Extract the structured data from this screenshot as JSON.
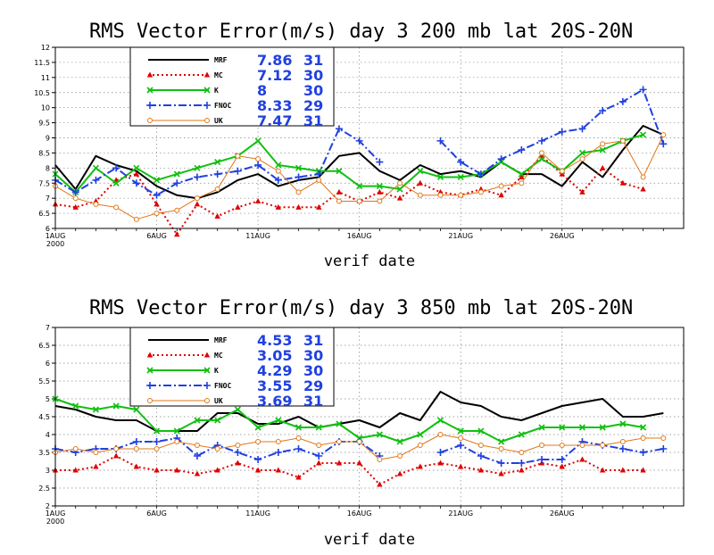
{
  "chart_data": [
    {
      "type": "line",
      "title": "RMS Vector Error(m/s) day 3  200 mb   lat 20S-20N",
      "xlabel": "verif date",
      "ylabel": "",
      "ylim": [
        6,
        12
      ],
      "yticks": [
        "6",
        "6.5",
        "7",
        "7.5",
        "8",
        "8.5",
        "9",
        "9.5",
        "10",
        "10.5",
        "11",
        "11.5",
        "12"
      ],
      "xticks": [
        {
          "label": "1AUG",
          "sublabel": "2000",
          "day": 1
        },
        {
          "label": "6AUG",
          "day": 6
        },
        {
          "label": "11AUG",
          "day": 11
        },
        {
          "label": "16AUG",
          "day": 16
        },
        {
          "label": "21AUG",
          "day": 21
        },
        {
          "label": "26AUG",
          "day": 26
        }
      ],
      "grid": true,
      "legend_position": "top-left",
      "series": [
        {
          "name": "MRF",
          "mean": "7.86",
          "count": "31",
          "color": "#000000",
          "dash": "",
          "marker": "none",
          "width": 2,
          "x": [
            1,
            2,
            3,
            4,
            5,
            6,
            7,
            8,
            9,
            10,
            11,
            12,
            13,
            14,
            15,
            16,
            17,
            18,
            19,
            20,
            21,
            22,
            23,
            24,
            25,
            26,
            27,
            28,
            29,
            30,
            31
          ],
          "values": [
            8.1,
            7.3,
            8.4,
            8.1,
            7.9,
            7.4,
            7.1,
            7.0,
            7.2,
            7.6,
            7.8,
            7.4,
            7.6,
            7.7,
            8.4,
            8.5,
            7.9,
            7.6,
            8.1,
            7.8,
            7.9,
            7.7,
            8.2,
            7.8,
            7.8,
            7.4,
            8.2,
            7.7,
            8.6,
            9.4,
            9.1
          ]
        },
        {
          "name": "MC",
          "mean": "7.12",
          "count": "30",
          "color": "#e00000",
          "dash": "2 3",
          "marker": "tri",
          "width": 2,
          "x": [
            1,
            2,
            3,
            4,
            5,
            6,
            7,
            8,
            9,
            10,
            11,
            12,
            13,
            14,
            15,
            16,
            17,
            18,
            19,
            20,
            21,
            22,
            23,
            24,
            25,
            26,
            27,
            28,
            29,
            30
          ],
          "values": [
            6.8,
            6.7,
            6.9,
            7.6,
            7.8,
            6.8,
            5.8,
            6.8,
            6.4,
            6.7,
            6.9,
            6.7,
            6.7,
            6.7,
            7.2,
            6.9,
            7.2,
            7.0,
            7.5,
            7.2,
            7.1,
            7.3,
            7.1,
            7.7,
            8.4,
            7.8,
            7.2,
            8.0,
            7.5,
            7.3
          ]
        },
        {
          "name": "K",
          "mean": "8",
          "count": "30",
          "color": "#10c010",
          "dash": "",
          "marker": "x",
          "width": 2,
          "x": [
            1,
            2,
            3,
            4,
            5,
            6,
            7,
            8,
            9,
            10,
            11,
            12,
            13,
            14,
            15,
            16,
            17,
            18,
            19,
            20,
            21,
            22,
            23,
            24,
            25,
            26,
            27,
            28,
            29,
            30
          ],
          "values": [
            7.8,
            7.2,
            8.0,
            7.5,
            8.0,
            7.6,
            7.8,
            8.0,
            8.2,
            8.4,
            8.9,
            8.1,
            8.0,
            7.9,
            7.9,
            7.4,
            7.4,
            7.3,
            7.9,
            7.7,
            7.7,
            7.8,
            8.2,
            7.8,
            8.3,
            7.9,
            8.5,
            8.6,
            8.9,
            9.1
          ]
        },
        {
          "name": "FNOC",
          "mean": "8.33",
          "count": "29",
          "color": "#2040e0",
          "dash": "9 3 2 3",
          "marker": "plus",
          "width": 2,
          "x": [
            1,
            2,
            3,
            4,
            5,
            6,
            7,
            8,
            9,
            10,
            11,
            12,
            13,
            14,
            15,
            16,
            17,
            20,
            21,
            22,
            23,
            24,
            25,
            26,
            27,
            28,
            29,
            30,
            31
          ],
          "values": [
            7.6,
            7.2,
            7.6,
            8.0,
            7.5,
            7.1,
            7.5,
            7.7,
            7.8,
            7.9,
            8.1,
            7.6,
            7.7,
            7.8,
            9.3,
            8.9,
            8.2,
            8.9,
            8.2,
            7.8,
            8.3,
            8.6,
            8.9,
            9.2,
            9.3,
            9.9,
            10.2,
            10.6,
            8.8
          ]
        },
        {
          "name": "UK",
          "mean": "7.47",
          "count": "31",
          "color": "#e07818",
          "dash": "",
          "marker": "circle",
          "width": 1,
          "x": [
            1,
            2,
            3,
            4,
            5,
            6,
            7,
            8,
            9,
            10,
            11,
            12,
            13,
            14,
            15,
            16,
            17,
            18,
            19,
            20,
            21,
            22,
            23,
            24,
            25,
            26,
            27,
            28,
            29,
            30,
            31
          ],
          "values": [
            7.4,
            7.0,
            6.8,
            6.7,
            6.3,
            6.5,
            6.6,
            7.0,
            7.3,
            8.4,
            8.3,
            7.9,
            7.2,
            7.6,
            6.9,
            6.9,
            6.9,
            7.5,
            7.1,
            7.1,
            7.1,
            7.2,
            7.4,
            7.5,
            8.5,
            7.9,
            8.3,
            8.8,
            8.9,
            7.7,
            9.1
          ]
        }
      ]
    },
    {
      "type": "line",
      "title": "RMS Vector Error(m/s) day 3  850 mb   lat 20S-20N",
      "xlabel": "verif date",
      "ylabel": "",
      "ylim": [
        2,
        7
      ],
      "yticks": [
        "2",
        "2.5",
        "3",
        "3.5",
        "4",
        "4.5",
        "5",
        "5.5",
        "6",
        "6.5",
        "7"
      ],
      "xticks": [
        {
          "label": "1AUG",
          "sublabel": "2000",
          "day": 1
        },
        {
          "label": "6AUG",
          "day": 6
        },
        {
          "label": "11AUG",
          "day": 11
        },
        {
          "label": "16AUG",
          "day": 16
        },
        {
          "label": "21AUG",
          "day": 21
        },
        {
          "label": "26AUG",
          "day": 26
        }
      ],
      "grid": true,
      "legend_position": "top-left",
      "series": [
        {
          "name": "MRF",
          "mean": "4.53",
          "count": "31",
          "color": "#000000",
          "dash": "",
          "marker": "none",
          "width": 2,
          "x": [
            1,
            2,
            3,
            4,
            5,
            6,
            7,
            8,
            9,
            10,
            11,
            12,
            13,
            14,
            15,
            16,
            17,
            18,
            19,
            20,
            21,
            22,
            23,
            24,
            25,
            26,
            27,
            28,
            29,
            30,
            31
          ],
          "values": [
            4.8,
            4.7,
            4.5,
            4.4,
            4.4,
            4.1,
            4.1,
            4.1,
            4.6,
            4.6,
            4.3,
            4.3,
            4.5,
            4.2,
            4.3,
            4.4,
            4.2,
            4.6,
            4.4,
            5.2,
            4.9,
            4.8,
            4.5,
            4.4,
            4.6,
            4.8,
            4.9,
            5.0,
            4.5,
            4.5,
            4.6
          ]
        },
        {
          "name": "MC",
          "mean": "3.05",
          "count": "30",
          "color": "#e00000",
          "dash": "2 3",
          "marker": "tri",
          "width": 2,
          "x": [
            1,
            2,
            3,
            4,
            5,
            6,
            7,
            8,
            9,
            10,
            11,
            12,
            13,
            14,
            15,
            16,
            17,
            18,
            19,
            20,
            21,
            22,
            23,
            24,
            25,
            26,
            27,
            28,
            29,
            30
          ],
          "values": [
            3.0,
            3.0,
            3.1,
            3.4,
            3.1,
            3.0,
            3.0,
            2.9,
            3.0,
            3.2,
            3.0,
            3.0,
            2.8,
            3.2,
            3.2,
            3.2,
            2.6,
            2.9,
            3.1,
            3.2,
            3.1,
            3.0,
            2.9,
            3.0,
            3.2,
            3.1,
            3.3,
            3.0,
            3.0,
            3.0
          ]
        },
        {
          "name": "K",
          "mean": "4.29",
          "count": "30",
          "color": "#10c010",
          "dash": "",
          "marker": "x",
          "width": 2,
          "x": [
            1,
            2,
            3,
            4,
            5,
            6,
            7,
            8,
            9,
            10,
            11,
            12,
            13,
            14,
            15,
            16,
            17,
            18,
            19,
            20,
            21,
            22,
            23,
            24,
            25,
            26,
            27,
            28,
            29,
            30
          ],
          "values": [
            5.0,
            4.8,
            4.7,
            4.8,
            4.7,
            4.1,
            4.1,
            4.4,
            4.4,
            4.7,
            4.2,
            4.4,
            4.2,
            4.2,
            4.3,
            3.9,
            4.0,
            3.8,
            4.0,
            4.4,
            4.1,
            4.1,
            3.8,
            4.0,
            4.2,
            4.2,
            4.2,
            4.2,
            4.3,
            4.2
          ]
        },
        {
          "name": "FNOC",
          "mean": "3.55",
          "count": "29",
          "color": "#2040e0",
          "dash": "9 3 2 3",
          "marker": "plus",
          "width": 2,
          "x": [
            1,
            2,
            3,
            4,
            5,
            6,
            7,
            8,
            9,
            10,
            11,
            12,
            13,
            14,
            15,
            16,
            17,
            20,
            21,
            22,
            23,
            24,
            25,
            26,
            27,
            28,
            29,
            30,
            31
          ],
          "values": [
            3.6,
            3.5,
            3.6,
            3.6,
            3.8,
            3.8,
            3.9,
            3.4,
            3.7,
            3.5,
            3.3,
            3.5,
            3.6,
            3.4,
            3.8,
            3.8,
            3.4,
            3.5,
            3.7,
            3.4,
            3.2,
            3.2,
            3.3,
            3.3,
            3.8,
            3.7,
            3.6,
            3.5,
            3.6
          ]
        },
        {
          "name": "UK",
          "mean": "3.69",
          "count": "31",
          "color": "#e07818",
          "dash": "",
          "marker": "circle",
          "width": 1,
          "x": [
            1,
            2,
            3,
            4,
            5,
            6,
            7,
            8,
            9,
            10,
            11,
            12,
            13,
            14,
            15,
            16,
            17,
            18,
            19,
            20,
            21,
            22,
            23,
            24,
            25,
            26,
            27,
            28,
            29,
            30,
            31
          ],
          "values": [
            3.5,
            3.6,
            3.5,
            3.6,
            3.6,
            3.6,
            3.8,
            3.7,
            3.6,
            3.7,
            3.8,
            3.8,
            3.9,
            3.7,
            3.8,
            3.8,
            3.3,
            3.4,
            3.7,
            4.0,
            3.9,
            3.7,
            3.6,
            3.5,
            3.7,
            3.7,
            3.7,
            3.7,
            3.8,
            3.9,
            3.9
          ]
        }
      ]
    }
  ]
}
